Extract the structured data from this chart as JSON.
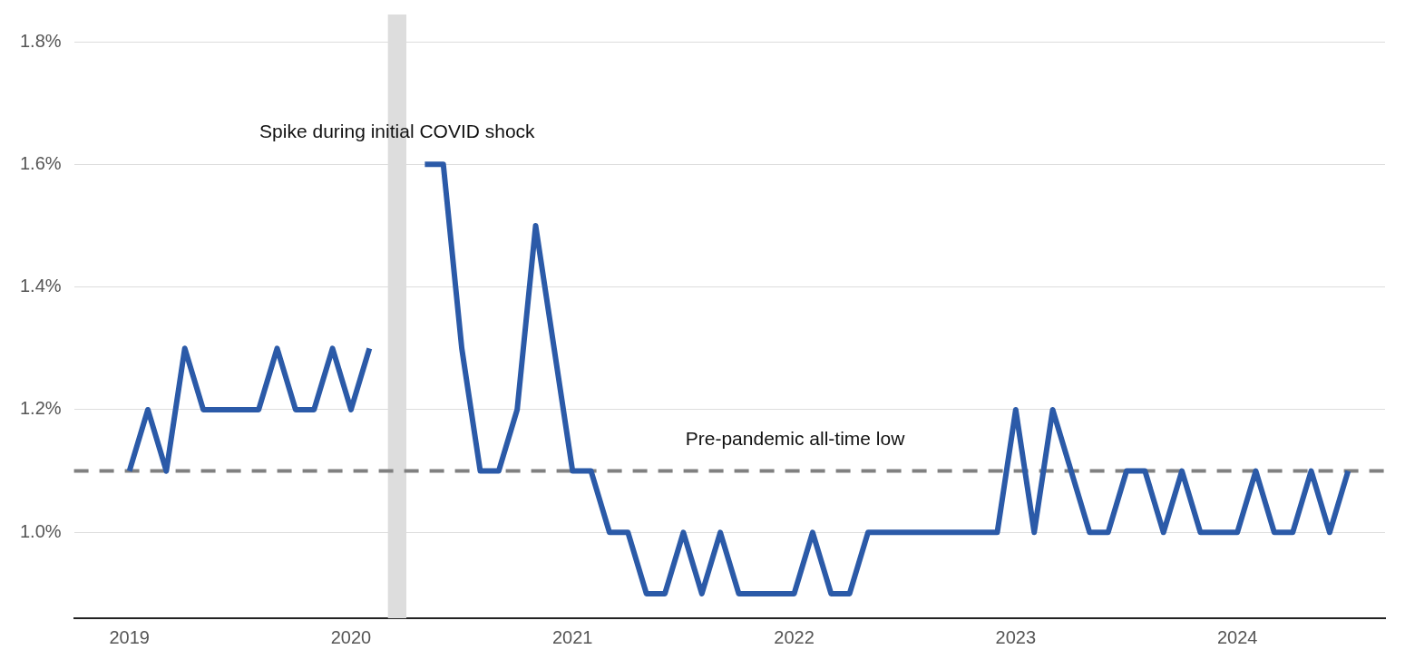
{
  "chart_data": {
    "type": "line",
    "x": [
      "2019-01",
      "2019-02",
      "2019-03",
      "2019-04",
      "2019-05",
      "2019-06",
      "2019-07",
      "2019-08",
      "2019-09",
      "2019-10",
      "2019-11",
      "2019-12",
      "2020-01",
      "2020-02",
      "2020-03",
      "2020-04",
      "2020-05",
      "2020-06",
      "2020-07",
      "2020-08",
      "2020-09",
      "2020-10",
      "2020-11",
      "2020-12",
      "2021-01",
      "2021-02",
      "2021-03",
      "2021-04",
      "2021-05",
      "2021-06",
      "2021-07",
      "2021-08",
      "2021-09",
      "2021-10",
      "2021-11",
      "2021-12",
      "2022-01",
      "2022-02",
      "2022-03",
      "2022-04",
      "2022-05",
      "2022-06",
      "2022-07",
      "2022-08",
      "2022-09",
      "2022-10",
      "2022-11",
      "2022-12",
      "2023-01",
      "2023-02",
      "2023-03",
      "2023-04",
      "2023-05",
      "2023-06",
      "2023-07",
      "2023-08",
      "2023-09",
      "2023-10",
      "2023-11",
      "2023-12",
      "2024-01",
      "2024-02",
      "2024-03",
      "2024-04",
      "2024-05",
      "2024-06",
      "2024-07"
    ],
    "series": [
      {
        "color": "#2b5aa8",
        "values": [
          1.1,
          1.2,
          1.1,
          1.3,
          1.2,
          1.2,
          1.2,
          1.2,
          1.3,
          1.2,
          1.2,
          1.3,
          1.2,
          1.3,
          null,
          null,
          1.6,
          1.6,
          1.3,
          1.1,
          1.1,
          1.2,
          1.5,
          1.3,
          1.1,
          1.1,
          1.0,
          1.0,
          0.9,
          0.9,
          1.0,
          0.9,
          1.0,
          0.9,
          0.9,
          0.9,
          0.9,
          1.0,
          0.9,
          0.9,
          1.0,
          1.0,
          1.0,
          1.0,
          1.0,
          1.0,
          1.0,
          1.0,
          1.2,
          1.0,
          1.2,
          1.1,
          1.0,
          1.0,
          1.1,
          1.1,
          1.0,
          1.1,
          1.0,
          1.0,
          1.0,
          1.1,
          1.0,
          1.0,
          1.1,
          1.0,
          1.1
        ]
      }
    ],
    "xlim": [
      "2018-10",
      "2024-09"
    ],
    "xticks": [
      "2019",
      "2020",
      "2021",
      "2022",
      "2023",
      "2024"
    ],
    "ylim": [
      0.86,
      1.8
    ],
    "yticks": [
      {
        "value": 1.0,
        "label": "1.0%"
      },
      {
        "value": 1.2,
        "label": "1.2%"
      },
      {
        "value": 1.4,
        "label": "1.4%"
      },
      {
        "value": 1.6,
        "label": "1.6%"
      },
      {
        "value": 1.8,
        "label": "1.8%"
      }
    ],
    "grid": "y",
    "legend": false,
    "marker": "none",
    "ref_lines": [
      {
        "axis": "y",
        "value": 1.1,
        "label": "Pre-pandemic all-time low",
        "color": "#808080",
        "line_style": "dashed"
      }
    ],
    "bands": [
      {
        "axis": "x",
        "from": "2020-03",
        "to": "2020-04",
        "label": "Spike during initial COVID shock",
        "color": "#dddddd"
      }
    ]
  }
}
